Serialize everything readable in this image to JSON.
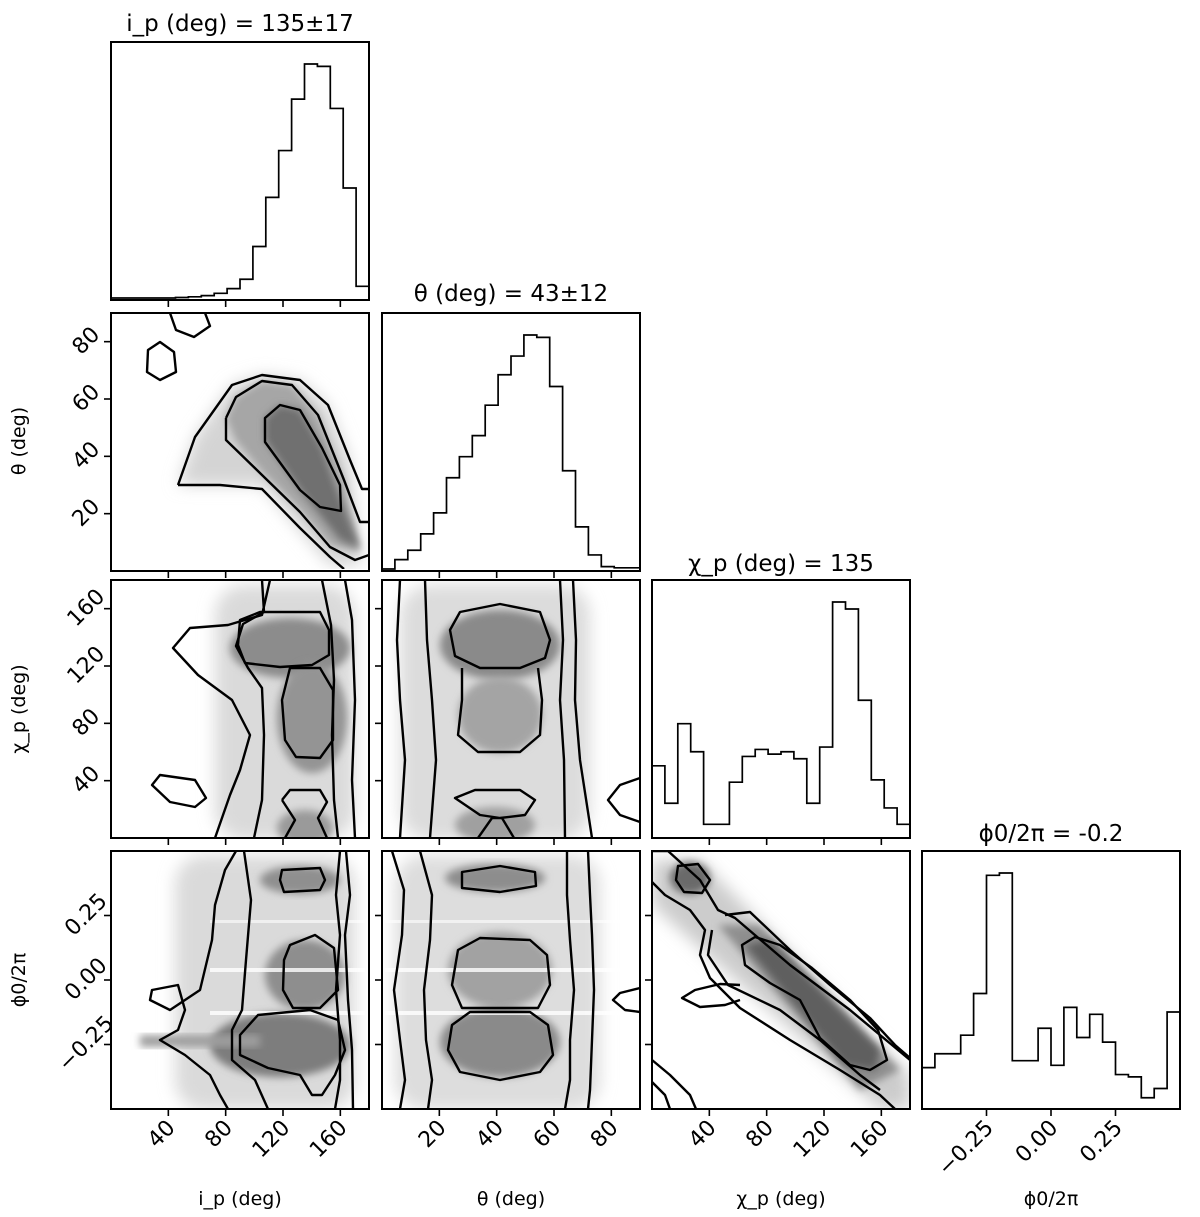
{
  "chart_data": {
    "type": "corner",
    "params": [
      {
        "id": "ip",
        "label": "i_p (deg)",
        "title": "i_p (deg) = 135±17",
        "range": [
          0,
          180
        ],
        "ticks": [
          40,
          80,
          120,
          160
        ],
        "tick_labels": [
          "40",
          "80",
          "120",
          "160"
        ]
      },
      {
        "id": "theta",
        "label": "θ (deg)",
        "title": "θ (deg) = 43±12",
        "range": [
          0,
          90
        ],
        "ticks": [
          20,
          40,
          60,
          80
        ],
        "tick_labels": [
          "20",
          "40",
          "60",
          "80"
        ]
      },
      {
        "id": "chip",
        "label": "χ_p (deg)",
        "title": "χ_p (deg) = 135",
        "range": [
          0,
          180
        ],
        "ticks": [
          40,
          80,
          120,
          160
        ],
        "tick_labels": [
          "40",
          "80",
          "120",
          "160"
        ]
      },
      {
        "id": "phi",
        "label": "ϕ0/2π",
        "title": "ϕ0/2π = -0.2",
        "range": [
          -0.5,
          0.5
        ],
        "ticks": [
          -0.25,
          0.0,
          0.25
        ],
        "tick_labels": [
          "−0.25",
          "0.00",
          "0.25"
        ]
      }
    ],
    "histograms": [
      {
        "param": "ip",
        "bin_edges": [
          0,
          9,
          18,
          27,
          36,
          45,
          54,
          63,
          72,
          81,
          90,
          99,
          108,
          117,
          126,
          135,
          144,
          153,
          162,
          171,
          180
        ],
        "counts": [
          0,
          0,
          0,
          0,
          0,
          0.2,
          0.5,
          1,
          2,
          4,
          8,
          22,
          43,
          63,
          85,
          100,
          99,
          81,
          47,
          5
        ]
      },
      {
        "param": "theta",
        "bin_edges": [
          0,
          4.5,
          9,
          13.5,
          18,
          22.5,
          27,
          31.5,
          36,
          40.5,
          45,
          49.5,
          54,
          58.5,
          63,
          67.5,
          72,
          76.5,
          81,
          85.5,
          90
        ],
        "counts": [
          0,
          4,
          8,
          15,
          24,
          39,
          48,
          57,
          70,
          83,
          91,
          100,
          99,
          78,
          42,
          18,
          6,
          1,
          0.5,
          0.5
        ]
      },
      {
        "param": "chip",
        "bin_edges": [
          0,
          9,
          18,
          27,
          36,
          45,
          54,
          63,
          72,
          81,
          90,
          99,
          108,
          117,
          126,
          135,
          144,
          153,
          162,
          171,
          180
        ],
        "counts": [
          30,
          14,
          48,
          36,
          5,
          5,
          23,
          34,
          37,
          35,
          36,
          33,
          14,
          38,
          100,
          97,
          58,
          24,
          12,
          5
        ]
      },
      {
        "param": "phi",
        "bin_edges": [
          -0.5,
          -0.45,
          -0.4,
          -0.35,
          -0.3,
          -0.25,
          -0.2,
          -0.15,
          -0.1,
          -0.05,
          0,
          0.05,
          0.1,
          0.15,
          0.2,
          0.25,
          0.3,
          0.35,
          0.4,
          0.45,
          0.5
        ],
        "counts": [
          17,
          23,
          23,
          31,
          49,
          100,
          101,
          20,
          20,
          34,
          18,
          43,
          30,
          40,
          28,
          14,
          13,
          4,
          8,
          41
        ]
      }
    ],
    "title": "",
    "grid": false,
    "legend": "none"
  }
}
